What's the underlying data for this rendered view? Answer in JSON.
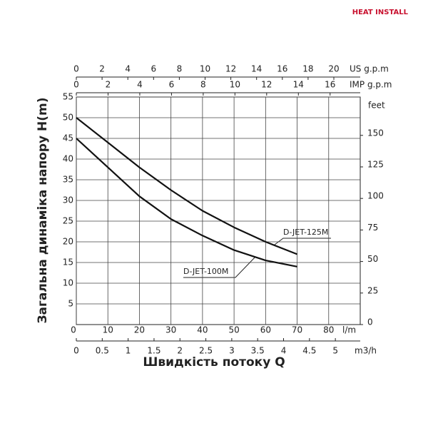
{
  "logo": "HEAT INSTALL",
  "chart_data": {
    "type": "line",
    "y_title": "Загальна динаміка напору H(m)",
    "x_title": "Швидкість потоку Q",
    "x_unit": "l/m",
    "x": [
      0,
      10,
      20,
      30,
      40,
      50,
      60,
      70
    ],
    "xlim": [
      0,
      90
    ],
    "xticks": [
      0,
      10,
      20,
      30,
      40,
      50,
      60,
      70,
      80
    ],
    "ylim": [
      0,
      55
    ],
    "yticks": [
      5,
      10,
      15,
      20,
      25,
      30,
      35,
      40,
      45,
      50,
      55
    ],
    "y2_unit": "feet",
    "y2lim": [
      0,
      180.4
    ],
    "y2ticks": [
      0,
      25,
      50,
      75,
      100,
      125,
      150
    ],
    "x2_axes": [
      {
        "unit": "US g.p.m",
        "lim": [
          0,
          22.05
        ],
        "ticks": [
          0,
          2,
          4,
          6,
          8,
          10,
          12,
          14,
          16,
          18,
          20
        ]
      },
      {
        "unit": "IMP g.p.m",
        "lim": [
          0,
          17.9
        ],
        "ticks": [
          0,
          2,
          4,
          6,
          8,
          10,
          12,
          14,
          16
        ]
      },
      {
        "unit": "m3/h",
        "lim": [
          0,
          5.48
        ],
        "ticks": [
          0,
          0.5,
          1,
          1.5,
          2,
          2.5,
          3,
          3.5,
          4,
          4.5,
          5
        ]
      }
    ],
    "grid": true,
    "series": [
      {
        "name": "D-JET-125M",
        "color": "#111111",
        "values": [
          50,
          44,
          38,
          32.5,
          27.5,
          23.5,
          20,
          17
        ]
      },
      {
        "name": "D-JET-100M",
        "color": "#111111",
        "values": [
          45,
          38,
          31,
          25.5,
          21.5,
          18,
          15.5,
          14
        ]
      }
    ]
  }
}
